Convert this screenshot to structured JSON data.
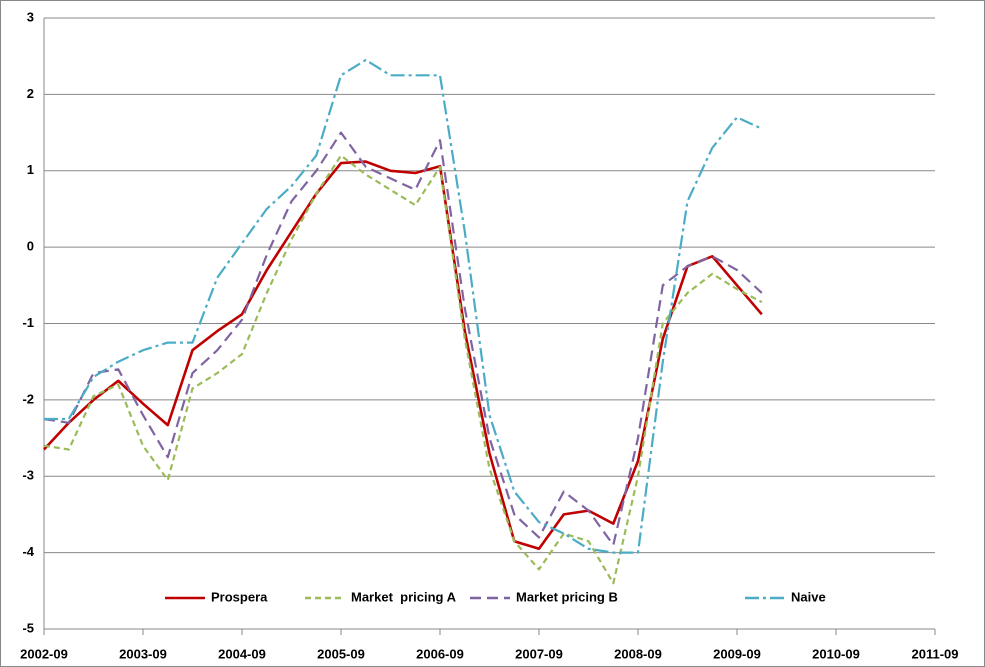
{
  "chart_data": {
    "type": "line",
    "categories": [
      "2002-09",
      null,
      null,
      null,
      "2003-09",
      null,
      null,
      null,
      "2004-09",
      null,
      null,
      null,
      "2005-09",
      null,
      null,
      null,
      "2006-09",
      null,
      null,
      null,
      "2007-09",
      null,
      null,
      null,
      "2008-09",
      null,
      null,
      null,
      "2009-09",
      null,
      null,
      null,
      "2010-09",
      null,
      null,
      null,
      "2011-09"
    ],
    "ylim": [
      -5,
      3
    ],
    "yticks": [
      -5,
      -4,
      -3,
      -2,
      -1,
      0,
      1,
      2,
      3
    ],
    "grid": true,
    "legend": "bottom",
    "series": [
      {
        "name": "Prospera",
        "color": "#c00000",
        "dash": "solid",
        "values": [
          -2.65,
          -2.3,
          -2.0,
          -1.75,
          -2.05,
          -2.33,
          -1.35,
          -1.1,
          -0.88,
          -0.3,
          0.2,
          0.7,
          1.1,
          1.12,
          1.0,
          0.97,
          1.06,
          -1.1,
          -2.7,
          -3.85,
          -3.95,
          -3.5,
          -3.45,
          -3.62,
          -2.8,
          -1.2,
          -0.25,
          -0.12,
          -0.5,
          -0.88,
          null,
          null,
          null,
          null,
          null,
          null,
          null
        ]
      },
      {
        "name": "Market  pricing A",
        "color": "#9bbb59",
        "dash": "dashed",
        "values": [
          -2.6,
          -2.65,
          -1.95,
          -1.8,
          -2.6,
          -3.05,
          -1.85,
          -1.65,
          -1.4,
          -0.6,
          0.1,
          0.7,
          1.2,
          0.95,
          0.75,
          0.55,
          1.05,
          -1.2,
          -2.9,
          -3.85,
          -4.22,
          -3.75,
          -3.85,
          -4.4,
          -3.0,
          -1.0,
          -0.6,
          -0.35,
          -0.55,
          -0.72,
          null,
          null,
          null,
          null,
          null,
          null,
          null
        ]
      },
      {
        "name": "Market pricing B",
        "color": "#8064a2",
        "dash": "longdash",
        "values": [
          -2.25,
          -2.3,
          -1.65,
          -1.6,
          -2.2,
          -2.75,
          -1.65,
          -1.35,
          -0.95,
          -0.1,
          0.6,
          1.0,
          1.5,
          1.05,
          0.9,
          0.75,
          1.4,
          -0.8,
          -2.5,
          -3.5,
          -3.8,
          -3.2,
          -3.45,
          -3.9,
          -2.5,
          -0.5,
          -0.25,
          -0.12,
          -0.3,
          -0.6,
          null,
          null,
          null,
          null,
          null,
          null,
          null
        ]
      },
      {
        "name": "Naive",
        "color": "#4bacc6",
        "dash": "dashdot",
        "values": [
          -2.25,
          -2.25,
          -1.7,
          -1.5,
          -1.35,
          -1.25,
          -1.25,
          -0.4,
          0.05,
          0.5,
          0.8,
          1.2,
          2.25,
          2.45,
          2.25,
          2.25,
          2.25,
          0.2,
          -2.2,
          -3.2,
          -3.6,
          -3.75,
          -3.95,
          -4.0,
          -4.0,
          -1.5,
          0.6,
          1.3,
          1.7,
          1.55,
          null,
          null,
          null,
          null,
          null,
          null,
          null
        ]
      }
    ]
  }
}
